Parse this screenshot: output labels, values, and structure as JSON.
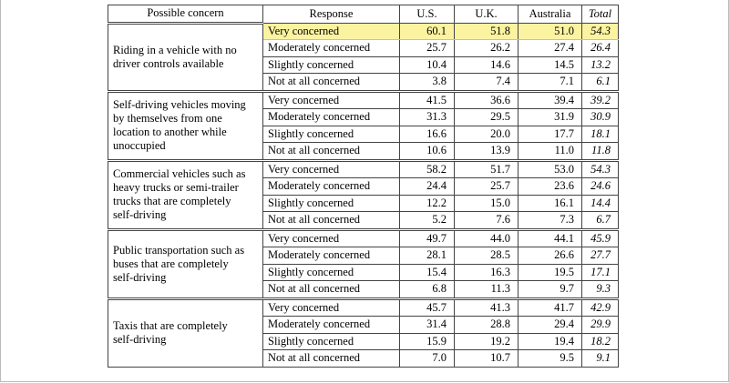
{
  "table": {
    "columns": [
      "Possible concern",
      "Response",
      "U.S.",
      "U.K.",
      "Australia",
      "Total"
    ],
    "groups": [
      {
        "concern": "Riding in a vehicle with no\ndriver controls available",
        "rows": [
          {
            "response": "Very concerned",
            "values": [
              "60.1",
              "51.8",
              "51.0",
              "54.3"
            ]
          },
          {
            "response": "Moderately concerned",
            "values": [
              "25.7",
              "26.2",
              "27.4",
              "26.4"
            ]
          },
          {
            "response": "Slightly concerned",
            "values": [
              "10.4",
              "14.6",
              "14.5",
              "13.2"
            ]
          },
          {
            "response": "Not at all concerned",
            "values": [
              "3.8",
              "7.4",
              "7.1",
              "6.1"
            ]
          }
        ]
      },
      {
        "concern": "Self-driving vehicles moving\nby themselves from one\nlocation to another while\nunoccupied",
        "rows": [
          {
            "response": "Very concerned",
            "values": [
              "41.5",
              "36.6",
              "39.4",
              "39.2"
            ]
          },
          {
            "response": "Moderately concerned",
            "values": [
              "31.3",
              "29.5",
              "31.9",
              "30.9"
            ]
          },
          {
            "response": "Slightly concerned",
            "values": [
              "16.6",
              "20.0",
              "17.7",
              "18.1"
            ]
          },
          {
            "response": "Not at all concerned",
            "values": [
              "10.6",
              "13.9",
              "11.0",
              "11.8"
            ]
          }
        ]
      },
      {
        "concern": "Commercial vehicles such as\nheavy trucks or semi-trailer\ntrucks that are completely\nself-driving",
        "rows": [
          {
            "response": "Very concerned",
            "values": [
              "58.2",
              "51.7",
              "53.0",
              "54.3"
            ]
          },
          {
            "response": "Moderately concerned",
            "values": [
              "24.4",
              "25.7",
              "23.6",
              "24.6"
            ]
          },
          {
            "response": "Slightly concerned",
            "values": [
              "12.2",
              "15.0",
              "16.1",
              "14.4"
            ]
          },
          {
            "response": "Not at all concerned",
            "values": [
              "5.2",
              "7.6",
              "7.3",
              "6.7"
            ]
          }
        ]
      },
      {
        "concern": "Public transportation such as\nbuses that are completely\nself-driving",
        "rows": [
          {
            "response": "Very concerned",
            "values": [
              "49.7",
              "44.0",
              "44.1",
              "45.9"
            ]
          },
          {
            "response": "Moderately concerned",
            "values": [
              "28.1",
              "28.5",
              "26.6",
              "27.7"
            ]
          },
          {
            "response": "Slightly concerned",
            "values": [
              "15.4",
              "16.3",
              "19.5",
              "17.1"
            ]
          },
          {
            "response": "Not at all concerned",
            "values": [
              "6.8",
              "11.3",
              "9.7",
              "9.3"
            ]
          }
        ]
      },
      {
        "concern": "Taxis that are completely\nself-driving",
        "rows": [
          {
            "response": "Very concerned",
            "values": [
              "45.7",
              "41.3",
              "41.7",
              "42.9"
            ]
          },
          {
            "response": "Moderately concerned",
            "values": [
              "31.4",
              "28.8",
              "29.4",
              "29.9"
            ]
          },
          {
            "response": "Slightly concerned",
            "values": [
              "15.9",
              "19.2",
              "19.4",
              "18.2"
            ]
          },
          {
            "response": "Not at all concerned",
            "values": [
              "7.0",
              "10.7",
              "9.5",
              "9.1"
            ]
          }
        ]
      }
    ]
  }
}
